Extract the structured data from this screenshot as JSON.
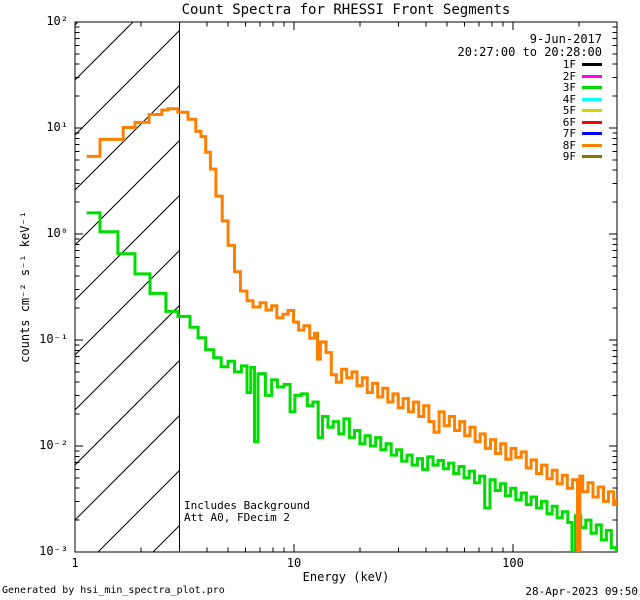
{
  "title": "Count Spectra for RHESSI Front Segments",
  "footer": {
    "left": "Generated by hsi_min_spectra_plot.pro",
    "right": "28-Apr-2023 09:50"
  },
  "chart_data": {
    "type": "line",
    "subtype": "step-histogram",
    "scale": "log-log",
    "title": "Count Spectra for RHESSI Front Segments",
    "xlabel": "Energy (keV)",
    "ylabel": "counts cm⁻² s⁻¹ keV⁻¹",
    "xlim": [
      1,
      300
    ],
    "ylim": [
      0.001,
      100
    ],
    "grid": false,
    "x_ticks": [
      {
        "value": 1,
        "label": "1"
      },
      {
        "value": 10,
        "label": "10"
      },
      {
        "value": 100,
        "label": "100"
      }
    ],
    "y_ticks": [
      {
        "value": 100,
        "label": "10²"
      },
      {
        "value": 10,
        "label": "10¹"
      },
      {
        "value": 1,
        "label": "10⁰"
      },
      {
        "value": 0.1,
        "label": "10⁻¹"
      },
      {
        "value": 0.01,
        "label": "10⁻²"
      },
      {
        "value": 0.001,
        "label": "10⁻³"
      }
    ],
    "date_label": "9-Jun-2017",
    "time_range_label": "20:27:00 to 20:28:00",
    "annotations": [
      "Includes Background",
      "Att A0, FDecim 2"
    ],
    "excluded_band": {
      "x_start": 1,
      "x_end": 3,
      "style": "diagonal-hatch"
    },
    "legend": {
      "position": "top-right",
      "entries": [
        {
          "label": "1F",
          "color": "#000000"
        },
        {
          "label": "2F",
          "color": "#ff00ff"
        },
        {
          "label": "3F",
          "color": "#00dd00"
        },
        {
          "label": "4F",
          "color": "#00ffff"
        },
        {
          "label": "5F",
          "color": "#d4d400"
        },
        {
          "label": "6F",
          "color": "#ff0000"
        },
        {
          "label": "7F",
          "color": "#0000ff"
        },
        {
          "label": "8F",
          "color": "#ff8000"
        },
        {
          "label": "9F",
          "color": "#827a00"
        }
      ]
    },
    "series": [
      {
        "name": "3F",
        "color": "#00dd00",
        "points": [
          [
            1.13,
            1.58
          ],
          [
            1.3,
            1.05
          ],
          [
            1.57,
            0.65
          ],
          [
            1.88,
            0.42
          ],
          [
            2.2,
            0.275
          ],
          [
            2.6,
            0.186
          ],
          [
            2.95,
            0.167
          ],
          [
            3.35,
            0.132
          ],
          [
            3.65,
            0.105
          ],
          [
            3.95,
            0.081
          ],
          [
            4.3,
            0.068
          ],
          [
            4.65,
            0.056
          ],
          [
            5.0,
            0.063
          ],
          [
            5.35,
            0.05
          ],
          [
            5.75,
            0.057
          ],
          [
            6.1,
            0.032
          ],
          [
            6.35,
            0.055
          ],
          [
            6.6,
            0.011
          ],
          [
            6.85,
            0.048
          ],
          [
            7.4,
            0.03
          ],
          [
            7.9,
            0.042
          ],
          [
            8.4,
            0.036
          ],
          [
            9.0,
            0.038
          ],
          [
            9.6,
            0.021
          ],
          [
            10.1,
            0.03
          ],
          [
            10.8,
            0.031
          ],
          [
            11.5,
            0.024
          ],
          [
            12.2,
            0.026
          ],
          [
            12.9,
            0.012
          ],
          [
            13.5,
            0.019
          ],
          [
            14.3,
            0.015
          ],
          [
            15.1,
            0.017
          ],
          [
            16.0,
            0.013
          ],
          [
            16.9,
            0.018
          ],
          [
            17.9,
            0.012
          ],
          [
            18.9,
            0.014
          ],
          [
            20.0,
            0.0105
          ],
          [
            21.1,
            0.0125
          ],
          [
            22.3,
            0.01
          ],
          [
            23.6,
            0.012
          ],
          [
            24.9,
            0.0092
          ],
          [
            26.3,
            0.0105
          ],
          [
            27.8,
            0.0082
          ],
          [
            29.4,
            0.0092
          ],
          [
            31.0,
            0.0072
          ],
          [
            32.8,
            0.0082
          ],
          [
            34.6,
            0.0066
          ],
          [
            36.6,
            0.0076
          ],
          [
            38.6,
            0.006
          ],
          [
            40.8,
            0.0079
          ],
          [
            43.1,
            0.0066
          ],
          [
            45.5,
            0.0073
          ],
          [
            48.1,
            0.0061
          ],
          [
            50.8,
            0.0069
          ],
          [
            53.6,
            0.0055
          ],
          [
            56.6,
            0.0064
          ],
          [
            59.8,
            0.005
          ],
          [
            63.1,
            0.0058
          ],
          [
            66.7,
            0.0045
          ],
          [
            70.4,
            0.0052
          ],
          [
            74.3,
            0.0026
          ],
          [
            78.5,
            0.0048
          ],
          [
            82.9,
            0.0038
          ],
          [
            87.5,
            0.0044
          ],
          [
            92.4,
            0.0034
          ],
          [
            97.6,
            0.004
          ],
          [
            103,
            0.0031
          ],
          [
            109,
            0.0036
          ],
          [
            115,
            0.0028
          ],
          [
            121,
            0.0033
          ],
          [
            128,
            0.0026
          ],
          [
            135,
            0.003
          ],
          [
            143,
            0.0023
          ],
          [
            151,
            0.0027
          ],
          [
            159,
            0.0021
          ],
          [
            168,
            0.0024
          ],
          [
            178,
            0.0019
          ],
          [
            186,
            0.001
          ],
          [
            193,
            0.0022
          ],
          [
            204,
            0.0017
          ],
          [
            215,
            0.002
          ],
          [
            227,
            0.0015
          ],
          [
            240,
            0.0018
          ],
          [
            253,
            0.0013
          ],
          [
            267,
            0.0016
          ],
          [
            281,
            0.0011
          ],
          [
            296,
            0.001
          ]
        ]
      },
      {
        "name": "8F",
        "color": "#ff8000",
        "points": [
          [
            1.13,
            5.4
          ],
          [
            1.3,
            7.8
          ],
          [
            1.66,
            10.1
          ],
          [
            1.88,
            11.3
          ],
          [
            2.18,
            13.4
          ],
          [
            2.49,
            14.8
          ],
          [
            2.66,
            15.2
          ],
          [
            2.95,
            14.1
          ],
          [
            3.28,
            12.1
          ],
          [
            3.56,
            9.3
          ],
          [
            3.76,
            8.3
          ],
          [
            3.95,
            5.9
          ],
          [
            4.15,
            4.1
          ],
          [
            4.4,
            2.28
          ],
          [
            4.7,
            1.33
          ],
          [
            5.0,
            0.78
          ],
          [
            5.35,
            0.44
          ],
          [
            5.7,
            0.29
          ],
          [
            6.1,
            0.235
          ],
          [
            6.5,
            0.205
          ],
          [
            7.0,
            0.225
          ],
          [
            7.45,
            0.192
          ],
          [
            7.9,
            0.21
          ],
          [
            8.35,
            0.162
          ],
          [
            8.9,
            0.175
          ],
          [
            9.4,
            0.19
          ],
          [
            9.95,
            0.148
          ],
          [
            10.5,
            0.124
          ],
          [
            11.1,
            0.136
          ],
          [
            11.8,
            0.104
          ],
          [
            12.4,
            0.116
          ],
          [
            12.8,
            0.066
          ],
          [
            13.2,
            0.096
          ],
          [
            14.0,
            0.076
          ],
          [
            14.8,
            0.047
          ],
          [
            15.6,
            0.04
          ],
          [
            16.5,
            0.053
          ],
          [
            17.4,
            0.044
          ],
          [
            18.4,
            0.05
          ],
          [
            19.4,
            0.037
          ],
          [
            20.5,
            0.044
          ],
          [
            21.6,
            0.032
          ],
          [
            22.8,
            0.039
          ],
          [
            24.1,
            0.029
          ],
          [
            25.4,
            0.035
          ],
          [
            26.8,
            0.026
          ],
          [
            28.3,
            0.031
          ],
          [
            29.9,
            0.023
          ],
          [
            31.5,
            0.028
          ],
          [
            33.3,
            0.021
          ],
          [
            35.1,
            0.026
          ],
          [
            37.1,
            0.019
          ],
          [
            39.1,
            0.024
          ],
          [
            41.3,
            0.017
          ],
          [
            43.6,
            0.0135
          ],
          [
            46.0,
            0.021
          ],
          [
            48.5,
            0.0155
          ],
          [
            51.2,
            0.019
          ],
          [
            54.1,
            0.014
          ],
          [
            57.1,
            0.017
          ],
          [
            60.2,
            0.0125
          ],
          [
            63.6,
            0.015
          ],
          [
            67.1,
            0.011
          ],
          [
            70.8,
            0.013
          ],
          [
            74.7,
            0.0095
          ],
          [
            78.9,
            0.0115
          ],
          [
            83.2,
            0.0085
          ],
          [
            87.9,
            0.0105
          ],
          [
            92.7,
            0.0075
          ],
          [
            97.9,
            0.0095
          ],
          [
            103,
            0.0078
          ],
          [
            109,
            0.0088
          ],
          [
            115,
            0.0062
          ],
          [
            121,
            0.0074
          ],
          [
            128,
            0.0055
          ],
          [
            135,
            0.0066
          ],
          [
            143,
            0.0049
          ],
          [
            151,
            0.0059
          ],
          [
            159,
            0.0044
          ],
          [
            168,
            0.0053
          ],
          [
            177,
            0.004
          ],
          [
            187,
            0.0048
          ],
          [
            197,
            0.001
          ],
          [
            202,
            0.0052
          ],
          [
            208,
            0.0037
          ],
          [
            220,
            0.0045
          ],
          [
            232,
            0.0033
          ],
          [
            245,
            0.0041
          ],
          [
            259,
            0.003
          ],
          [
            273,
            0.0037
          ],
          [
            288,
            0.0028
          ],
          [
            298,
            0.0032
          ]
        ]
      }
    ]
  }
}
